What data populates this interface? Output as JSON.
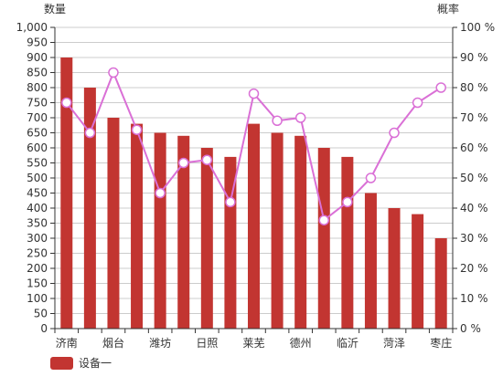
{
  "colors": {
    "bar": "#c23531",
    "line": "#da70d6",
    "point_fill": "#ffffff",
    "grid": "#cccccc",
    "axis": "#333333"
  },
  "chart_data": {
    "type": "bar",
    "categories": [
      "济南",
      "",
      "烟台",
      "",
      "潍坊",
      "",
      "日照",
      "",
      "莱芜",
      "",
      "德州",
      "",
      "临沂",
      "",
      "菏泽",
      "",
      "枣庄"
    ],
    "y_left": {
      "label": "数量",
      "ylim": [
        0,
        1000
      ],
      "ticks": [
        "0",
        "50",
        "100",
        "150",
        "200",
        "250",
        "300",
        "350",
        "400",
        "450",
        "500",
        "550",
        "600",
        "650",
        "700",
        "750",
        "800",
        "850",
        "900",
        "950",
        "1,000"
      ]
    },
    "y_right": {
      "label": "概率",
      "ylim": [
        0,
        100
      ],
      "ticks": [
        "0 %",
        "10 %",
        "20 %",
        "30 %",
        "40 %",
        "50 %",
        "60 %",
        "70 %",
        "80 %",
        "90 %",
        "100 %"
      ]
    },
    "series": [
      {
        "name": "设备一",
        "type": "bar",
        "axis": "left",
        "values": [
          900,
          800,
          700,
          680,
          650,
          640,
          600,
          570,
          680,
          650,
          640,
          600,
          570,
          450,
          400,
          380,
          300
        ]
      },
      {
        "type": "line",
        "axis": "right",
        "values": [
          75,
          65,
          85,
          66,
          45,
          55,
          56,
          42,
          78,
          69,
          70,
          36,
          42,
          50,
          65,
          75,
          80
        ]
      }
    ],
    "grid": true,
    "legend_position": "bottom-left"
  },
  "legend": {
    "label": "设备一"
  }
}
